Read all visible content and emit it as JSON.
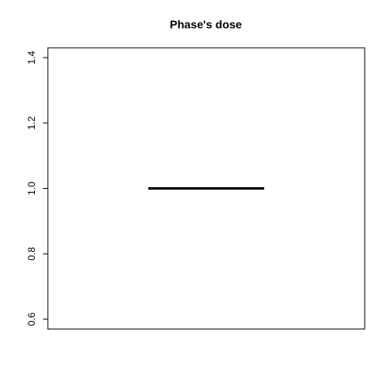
{
  "chart_data": {
    "type": "boxplot",
    "title": "Phase's dose",
    "xlabel": "",
    "ylabel": "",
    "ylim": [
      0.57,
      1.43
    ],
    "y_ticks": [
      0.6,
      0.8,
      1.0,
      1.2,
      1.4
    ],
    "y_tick_labels": [
      "0.6",
      "0.8",
      "1.0",
      "1.2",
      "1.4"
    ],
    "series": [
      {
        "min": 1.0,
        "q1": 1.0,
        "median": 1.0,
        "q3": 1.0,
        "max": 1.0
      }
    ],
    "grid": false,
    "legend": "none",
    "colors": {
      "median": "#000000",
      "axes": "#000000"
    }
  }
}
